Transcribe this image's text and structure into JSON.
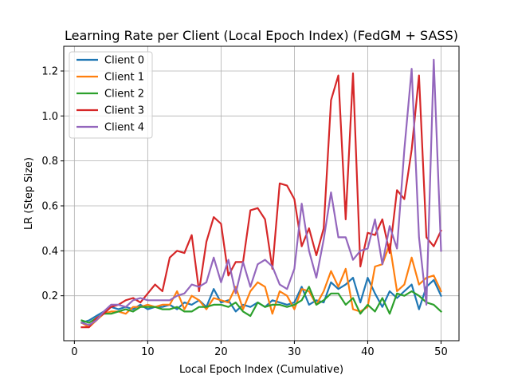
{
  "chart_data": {
    "type": "line",
    "title": "Learning Rate per Client (Local Epoch Index) (FedGM + SASS)",
    "xlabel": "Local Epoch Index (Cumulative)",
    "ylabel": "LR (Step Size)",
    "xlim": [
      -1.45,
      52.45
    ],
    "ylim": [
      0.0,
      1.31
    ],
    "xticks": [
      0,
      10,
      20,
      30,
      40,
      50
    ],
    "yticks": [
      0.2,
      0.4,
      0.6,
      0.8,
      1.0,
      1.2
    ],
    "grid": true,
    "legend_position": "upper-left",
    "x": [
      1,
      2,
      3,
      4,
      5,
      6,
      7,
      8,
      9,
      10,
      11,
      12,
      13,
      14,
      15,
      16,
      17,
      18,
      19,
      20,
      21,
      22,
      23,
      24,
      25,
      26,
      27,
      28,
      29,
      30,
      31,
      32,
      33,
      34,
      35,
      36,
      37,
      38,
      39,
      40,
      41,
      42,
      43,
      44,
      45,
      46,
      47,
      48,
      49,
      50
    ],
    "series": [
      {
        "name": "Client 0",
        "color": "#1f77b4",
        "values": [
          0.08,
          0.09,
          0.11,
          0.13,
          0.15,
          0.14,
          0.15,
          0.14,
          0.16,
          0.14,
          0.15,
          0.15,
          0.16,
          0.14,
          0.17,
          0.16,
          0.18,
          0.15,
          0.23,
          0.17,
          0.18,
          0.13,
          0.16,
          0.15,
          0.17,
          0.15,
          0.18,
          0.17,
          0.16,
          0.17,
          0.24,
          0.16,
          0.18,
          0.17,
          0.26,
          0.23,
          0.25,
          0.28,
          0.17,
          0.28,
          0.21,
          0.15,
          0.22,
          0.19,
          0.22,
          0.25,
          0.14,
          0.24,
          0.27,
          0.2
        ]
      },
      {
        "name": "Client 1",
        "color": "#ff7f0e",
        "values": [
          0.08,
          0.06,
          0.09,
          0.12,
          0.13,
          0.13,
          0.12,
          0.15,
          0.15,
          0.16,
          0.15,
          0.16,
          0.16,
          0.22,
          0.14,
          0.2,
          0.18,
          0.14,
          0.19,
          0.18,
          0.17,
          0.24,
          0.14,
          0.22,
          0.26,
          0.24,
          0.12,
          0.22,
          0.2,
          0.14,
          0.23,
          0.22,
          0.16,
          0.22,
          0.31,
          0.24,
          0.32,
          0.14,
          0.13,
          0.15,
          0.33,
          0.34,
          0.43,
          0.22,
          0.25,
          0.37,
          0.25,
          0.28,
          0.29,
          0.22
        ]
      },
      {
        "name": "Client 2",
        "color": "#2ca02c",
        "values": [
          0.09,
          0.08,
          0.1,
          0.12,
          0.12,
          0.13,
          0.14,
          0.13,
          0.15,
          0.15,
          0.15,
          0.14,
          0.14,
          0.15,
          0.13,
          0.13,
          0.15,
          0.15,
          0.16,
          0.16,
          0.15,
          0.17,
          0.13,
          0.11,
          0.17,
          0.15,
          0.16,
          0.16,
          0.15,
          0.16,
          0.18,
          0.24,
          0.16,
          0.18,
          0.21,
          0.21,
          0.16,
          0.19,
          0.12,
          0.16,
          0.13,
          0.19,
          0.12,
          0.21,
          0.2,
          0.22,
          0.2,
          0.17,
          0.16,
          0.13
        ]
      },
      {
        "name": "Client 3",
        "color": "#d62728",
        "values": [
          0.06,
          0.06,
          0.1,
          0.12,
          0.15,
          0.16,
          0.18,
          0.19,
          0.17,
          0.21,
          0.25,
          0.22,
          0.37,
          0.4,
          0.39,
          0.47,
          0.22,
          0.44,
          0.55,
          0.52,
          0.29,
          0.35,
          0.35,
          0.58,
          0.59,
          0.54,
          0.32,
          0.7,
          0.69,
          0.63,
          0.42,
          0.5,
          0.38,
          0.5,
          1.07,
          1.18,
          0.54,
          1.19,
          0.33,
          0.48,
          0.47,
          0.54,
          0.39,
          0.67,
          0.63,
          0.85,
          1.18,
          0.46,
          0.42,
          0.49
        ]
      },
      {
        "name": "Client 4",
        "color": "#9467bd",
        "values": [
          0.08,
          0.07,
          0.09,
          0.13,
          0.16,
          0.16,
          0.15,
          0.18,
          0.19,
          0.18,
          0.18,
          0.18,
          0.18,
          0.2,
          0.21,
          0.25,
          0.24,
          0.26,
          0.37,
          0.26,
          0.36,
          0.21,
          0.35,
          0.24,
          0.34,
          0.36,
          0.33,
          0.25,
          0.23,
          0.32,
          0.61,
          0.4,
          0.28,
          0.45,
          0.66,
          0.46,
          0.46,
          0.36,
          0.4,
          0.41,
          0.54,
          0.34,
          0.51,
          0.41,
          0.85,
          1.21,
          0.46,
          0.16,
          1.25,
          0.4
        ]
      }
    ]
  }
}
